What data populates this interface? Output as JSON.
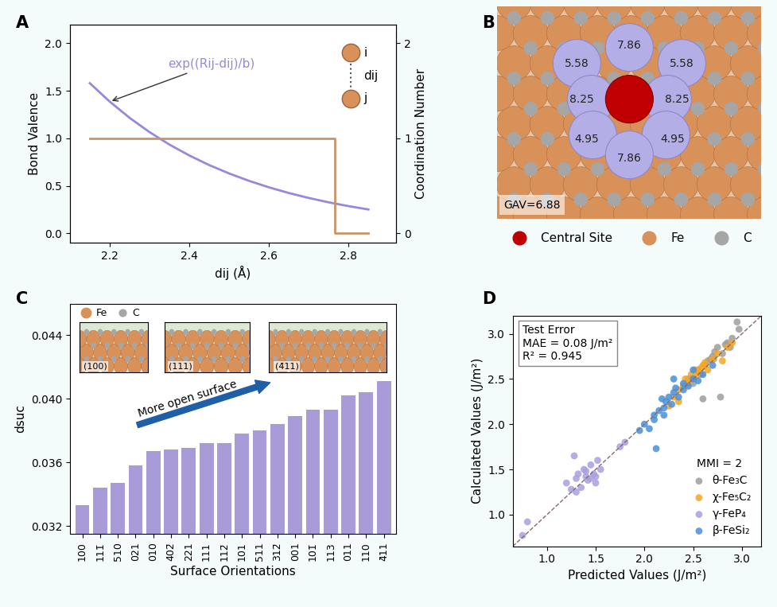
{
  "chart_data": [
    {
      "panel": "A",
      "type": "line",
      "xlabel": "dij (Å)",
      "ylabel": "Bond Valence",
      "y2label": "Coordination Number",
      "xlim": [
        2.1,
        2.92
      ],
      "xticks": [
        2.2,
        2.4,
        2.6,
        2.8
      ],
      "ylim": [
        -0.1,
        2.2
      ],
      "yticks": [
        {
          "value": 0,
          "label": "0.0"
        },
        0.5,
        {
          "value": 1,
          "label": "1.0"
        },
        1.5,
        {
          "value": 2,
          "label": "2.0"
        }
      ],
      "y2lim": [
        -0.1,
        2.2
      ],
      "y2ticks": [
        0,
        1,
        2
      ],
      "annotations": [
        "exp((Rij-dij)/b)",
        "i",
        "j",
        "dij"
      ],
      "series": [
        {
          "name": "Bond Valence",
          "color": "#9b87d9",
          "x": [
            2.15,
            2.2,
            2.25,
            2.3,
            2.35,
            2.4,
            2.45,
            2.5,
            2.55,
            2.6,
            2.65,
            2.7,
            2.75,
            2.8,
            2.85
          ],
          "values": [
            1.58,
            1.386,
            1.215,
            1.065,
            0.934,
            0.819,
            0.718,
            0.63,
            0.552,
            0.484,
            0.424,
            0.372,
            0.326,
            0.286,
            0.251
          ]
        },
        {
          "name": "Coordination Number",
          "color": "#c8956a",
          "axis": "y2",
          "x": [
            2.15,
            2.765,
            2.765,
            2.85
          ],
          "values": [
            1,
            1,
            0,
            0
          ]
        }
      ]
    },
    {
      "panel": "C",
      "type": "bar",
      "ylabel": "dsuc",
      "xlabel": "Surface Orientations",
      "color": "#a99ad8",
      "categories": [
        "100",
        "111̄",
        "510",
        "021",
        "010",
        "402̄",
        "221",
        "111",
        "112̄",
        "101",
        "511",
        "312̄",
        "001",
        "101̄",
        "113",
        "011",
        "110",
        "4̄11"
      ],
      "values": [
        0.0333,
        0.0344,
        0.0347,
        0.0358,
        0.0367,
        0.0368,
        0.0369,
        0.0372,
        0.0372,
        0.0378,
        0.038,
        0.0384,
        0.0389,
        0.0393,
        0.0393,
        0.0402,
        0.0404,
        0.0411
      ],
      "ylim": [
        0.0315,
        0.046
      ],
      "yticks": [
        0.032,
        0.036,
        {
          "value": 0.04,
          "label": "0.040"
        },
        0.044
      ],
      "annotations": [
        "More open surface",
        "(100)",
        "(111)",
        "(4̄11)",
        "Fe",
        "C"
      ]
    },
    {
      "panel": "D",
      "type": "scatter",
      "xlabel": "Predicted Values (J/m²)",
      "ylabel": "Calculated Values (J/m²)",
      "xlim": [
        0.65,
        3.2
      ],
      "ylim": [
        0.65,
        3.2
      ],
      "xticks": [
        {
          "value": 1,
          "label": "1.0"
        },
        1.5,
        {
          "value": 2,
          "label": "2.0"
        },
        2.5,
        {
          "value": 3,
          "label": "3.0"
        }
      ],
      "yticks": [
        {
          "value": 1,
          "label": "1.0"
        },
        1.5,
        {
          "value": 2,
          "label": "2.0"
        },
        2.5,
        {
          "value": 3,
          "label": "3.0"
        }
      ],
      "annotations": [
        "Test Error",
        "MAE = 0.08 J/m²",
        "R² = 0.945",
        "MMI = 2"
      ],
      "legend": "lower right",
      "series": [
        {
          "name": "θ-Fe₃C",
          "color": "#9e9e9e",
          "x": [
            2.45,
            2.55,
            2.6,
            2.65,
            2.7,
            2.72,
            2.75,
            2.8,
            2.85,
            2.9,
            2.95,
            2.62,
            2.68,
            2.58,
            2.78,
            2.88,
            2.5,
            2.71,
            2.83,
            2.97
          ],
          "values": [
            2.5,
            2.6,
            2.28,
            2.7,
            2.75,
            2.8,
            2.85,
            2.78,
            2.9,
            2.95,
            3.13,
            2.65,
            2.72,
            2.55,
            2.3,
            2.85,
            2.45,
            2.72,
            2.88,
            3.05
          ]
        },
        {
          "name": "χ-Fe₅C₂",
          "color": "#f5a623",
          "x": [
            2.25,
            2.3,
            2.35,
            2.4,
            2.42,
            2.45,
            2.48,
            2.5,
            2.52,
            2.55,
            2.58,
            2.6,
            2.62,
            2.65,
            2.7,
            2.75,
            2.8,
            2.85,
            2.9,
            2.35,
            2.45,
            2.55
          ],
          "values": [
            2.2,
            2.3,
            2.38,
            2.42,
            2.5,
            2.45,
            2.55,
            2.52,
            2.6,
            2.58,
            2.62,
            2.65,
            2.68,
            2.6,
            2.72,
            2.78,
            2.7,
            2.85,
            2.9,
            2.25,
            2.48,
            2.55
          ]
        },
        {
          "name": "γ-FeP₄",
          "color": "#a99fe0",
          "x": [
            0.75,
            0.8,
            1.2,
            1.25,
            1.3,
            1.32,
            1.35,
            1.38,
            1.4,
            1.42,
            1.45,
            1.48,
            1.5,
            1.52,
            1.55,
            1.3,
            1.4,
            1.45,
            1.75,
            1.8,
            1.28,
            1.5
          ],
          "values": [
            0.77,
            0.92,
            1.35,
            1.28,
            1.4,
            1.45,
            1.3,
            1.5,
            1.42,
            1.38,
            1.55,
            1.45,
            1.35,
            1.6,
            1.5,
            1.25,
            1.48,
            1.4,
            1.75,
            1.8,
            1.65,
            1.42
          ]
        },
        {
          "name": "β-FeSi₂",
          "color": "#4a90d9",
          "x": [
            1.95,
            2.0,
            2.05,
            2.1,
            2.12,
            2.15,
            2.2,
            2.22,
            2.25,
            2.28,
            2.3,
            2.32,
            2.35,
            2.4,
            2.45,
            2.5,
            2.55,
            2.6,
            2.1,
            2.2,
            2.3,
            2.4,
            2.5,
            2.7,
            2.18
          ],
          "values": [
            1.93,
            2.0,
            1.95,
            2.1,
            1.73,
            2.15,
            2.18,
            2.25,
            2.3,
            2.22,
            2.35,
            2.4,
            2.3,
            2.45,
            2.42,
            2.5,
            2.48,
            2.55,
            2.05,
            2.1,
            2.5,
            2.38,
            2.6,
            2.65,
            2.28
          ]
        }
      ]
    }
  ],
  "panel_B": {
    "panel": "B",
    "sites": [
      5.58,
      7.86,
      5.58,
      8.25,
      8.25,
      4.95,
      4.95,
      7.86
    ],
    "gav": "GAV=6.88",
    "legend_entries": [
      {
        "name": "Central Site",
        "color": "#c00000"
      },
      {
        "name": "Fe",
        "color": "#d9915a"
      },
      {
        "name": "C",
        "color": "#a6a6a6"
      }
    ]
  }
}
